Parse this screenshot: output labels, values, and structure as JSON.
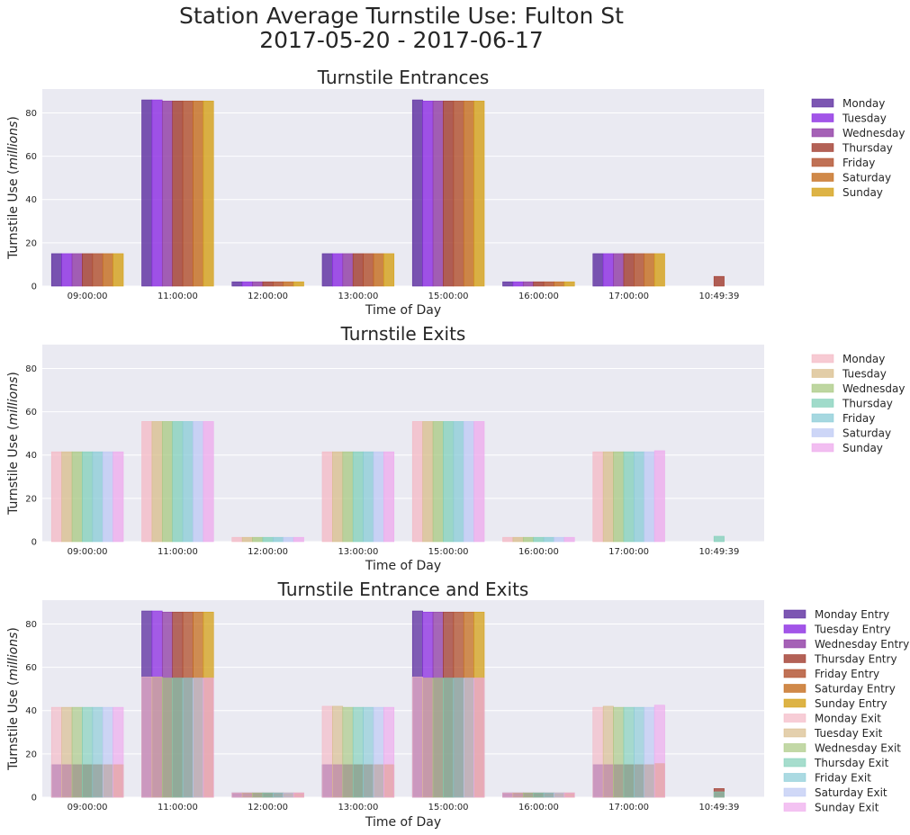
{
  "figure": {
    "title_line1": "Station Average Turnstile Use: Fulton St",
    "title_line2": "2017-05-20  -  2017-06-17"
  },
  "colors": {
    "background": "#EAEAF2",
    "grid": "#FFFFFF",
    "entry": [
      "#5B2C9F",
      "#8B2BE2",
      "#8E3AA4",
      "#A03A2C",
      "#B04E2A",
      "#C46C1C",
      "#D4A017"
    ],
    "exit": [
      "#F4B8C4",
      "#D8BC8A",
      "#A8C880",
      "#80CFB8",
      "#88CBD6",
      "#BCC8F4",
      "#EEA8EC"
    ]
  },
  "chart_data": [
    {
      "type": "bar",
      "title": "Turnstile Entrances",
      "xlabel": "Time of Day",
      "ylabel": "Turnstile Use (millions)",
      "ylim": [
        0,
        91
      ],
      "yticks": [
        0,
        20,
        40,
        60,
        80
      ],
      "grid": true,
      "legend_position": "outside-right",
      "categories": [
        "09:00:00",
        "11:00:00",
        "12:00:00",
        "13:00:00",
        "15:00:00",
        "16:00:00",
        "17:00:00",
        "10:49:39"
      ],
      "series": [
        {
          "name": "Monday",
          "values": [
            15,
            86,
            2,
            15,
            86,
            2,
            15,
            0
          ]
        },
        {
          "name": "Tuesday",
          "values": [
            15,
            86,
            2,
            15,
            85.5,
            2,
            15,
            0
          ]
        },
        {
          "name": "Wednesday",
          "values": [
            15,
            85.5,
            2,
            15,
            85.5,
            2,
            15,
            0
          ]
        },
        {
          "name": "Thursday",
          "values": [
            15,
            85.5,
            2,
            15,
            85.5,
            2,
            15,
            4.5
          ]
        },
        {
          "name": "Friday",
          "values": [
            15,
            85.5,
            2,
            15,
            85.5,
            2,
            15,
            0
          ]
        },
        {
          "name": "Saturday",
          "values": [
            15,
            85.5,
            2,
            15,
            85.5,
            2,
            15,
            0
          ]
        },
        {
          "name": "Sunday",
          "values": [
            15,
            85.5,
            2,
            15,
            85.5,
            2,
            15,
            0
          ]
        }
      ]
    },
    {
      "type": "bar",
      "title": "Turnstile Exits",
      "xlabel": "Time of Day",
      "ylabel": "Turnstile Use (millions)",
      "ylim": [
        0,
        91
      ],
      "yticks": [
        0,
        20,
        40,
        60,
        80
      ],
      "grid": true,
      "legend_position": "outside-right",
      "categories": [
        "09:00:00",
        "11:00:00",
        "12:00:00",
        "13:00:00",
        "15:00:00",
        "16:00:00",
        "17:00:00",
        "10:49:39"
      ],
      "series": [
        {
          "name": "Monday",
          "values": [
            41.5,
            55.5,
            2,
            41.5,
            55.5,
            2,
            41.5,
            0
          ]
        },
        {
          "name": "Tuesday",
          "values": [
            41.5,
            55.5,
            2,
            41.5,
            55.5,
            2,
            41.5,
            0
          ]
        },
        {
          "name": "Wednesday",
          "values": [
            41.5,
            55.5,
            2,
            41.5,
            55.5,
            2,
            41.5,
            0
          ]
        },
        {
          "name": "Thursday",
          "values": [
            41.5,
            55.5,
            2,
            41.5,
            55.5,
            2,
            41.5,
            2.5
          ]
        },
        {
          "name": "Friday",
          "values": [
            41.5,
            55.5,
            2,
            41.5,
            55.5,
            2,
            41.5,
            0
          ]
        },
        {
          "name": "Saturday",
          "values": [
            41.5,
            55.5,
            2,
            41.5,
            55.5,
            2,
            41.5,
            0
          ]
        },
        {
          "name": "Sunday",
          "values": [
            41.5,
            55.5,
            2,
            41.5,
            55.5,
            2,
            42,
            0
          ]
        }
      ]
    },
    {
      "type": "bar",
      "title": "Turnstile Entrance and Exits",
      "xlabel": "Time of Day",
      "ylabel": "Turnstile Use (millions)",
      "ylim": [
        0,
        91
      ],
      "yticks": [
        0,
        20,
        40,
        60,
        80
      ],
      "grid": true,
      "overlay": true,
      "legend_position": "outside-right",
      "categories": [
        "09:00:00",
        "11:00:00",
        "12:00:00",
        "13:00:00",
        "15:00:00",
        "16:00:00",
        "17:00:00",
        "10:49:39"
      ],
      "series": [
        {
          "name": "Monday Entry",
          "group": "entry",
          "values": [
            15,
            86,
            2,
            15,
            86,
            2,
            15,
            0
          ]
        },
        {
          "name": "Tuesday Entry",
          "group": "entry",
          "values": [
            15,
            86,
            2,
            15,
            85.5,
            2,
            15,
            0
          ]
        },
        {
          "name": "Wednesday Entry",
          "group": "entry",
          "values": [
            15,
            85.5,
            2,
            15,
            85.5,
            2,
            15,
            0
          ]
        },
        {
          "name": "Thursday Entry",
          "group": "entry",
          "values": [
            15,
            85.5,
            2,
            15,
            85.5,
            2,
            15,
            4
          ]
        },
        {
          "name": "Friday Entry",
          "group": "entry",
          "values": [
            15,
            85.5,
            2,
            15,
            85.5,
            2,
            15,
            0
          ]
        },
        {
          "name": "Saturday Entry",
          "group": "entry",
          "values": [
            15,
            85.5,
            2,
            15,
            85.5,
            2,
            15,
            0
          ]
        },
        {
          "name": "Sunday Entry",
          "group": "entry",
          "values": [
            15,
            85.5,
            2,
            15,
            85.5,
            2,
            15.5,
            0
          ]
        },
        {
          "name": "Monday Exit",
          "group": "exit",
          "values": [
            41.5,
            55.5,
            2,
            42,
            55.5,
            2,
            41.5,
            0
          ]
        },
        {
          "name": "Tuesday Exit",
          "group": "exit",
          "values": [
            41.5,
            55.5,
            2,
            42,
            55,
            2,
            42,
            0
          ]
        },
        {
          "name": "Wednesday Exit",
          "group": "exit",
          "values": [
            41.5,
            55,
            2,
            41.5,
            55,
            2,
            41.5,
            0
          ]
        },
        {
          "name": "Thursday Exit",
          "group": "exit",
          "values": [
            41.5,
            55,
            2,
            41.5,
            55,
            2,
            41.5,
            2.5
          ]
        },
        {
          "name": "Friday Exit",
          "group": "exit",
          "values": [
            41.5,
            55,
            2,
            41.5,
            55,
            2,
            41.5,
            0
          ]
        },
        {
          "name": "Saturday Exit",
          "group": "exit",
          "values": [
            41.5,
            55,
            2,
            41.5,
            55,
            2,
            41.5,
            0
          ]
        },
        {
          "name": "Sunday Exit",
          "group": "exit",
          "values": [
            41.5,
            55,
            2,
            41.5,
            55,
            2,
            42.5,
            0
          ]
        }
      ]
    }
  ]
}
